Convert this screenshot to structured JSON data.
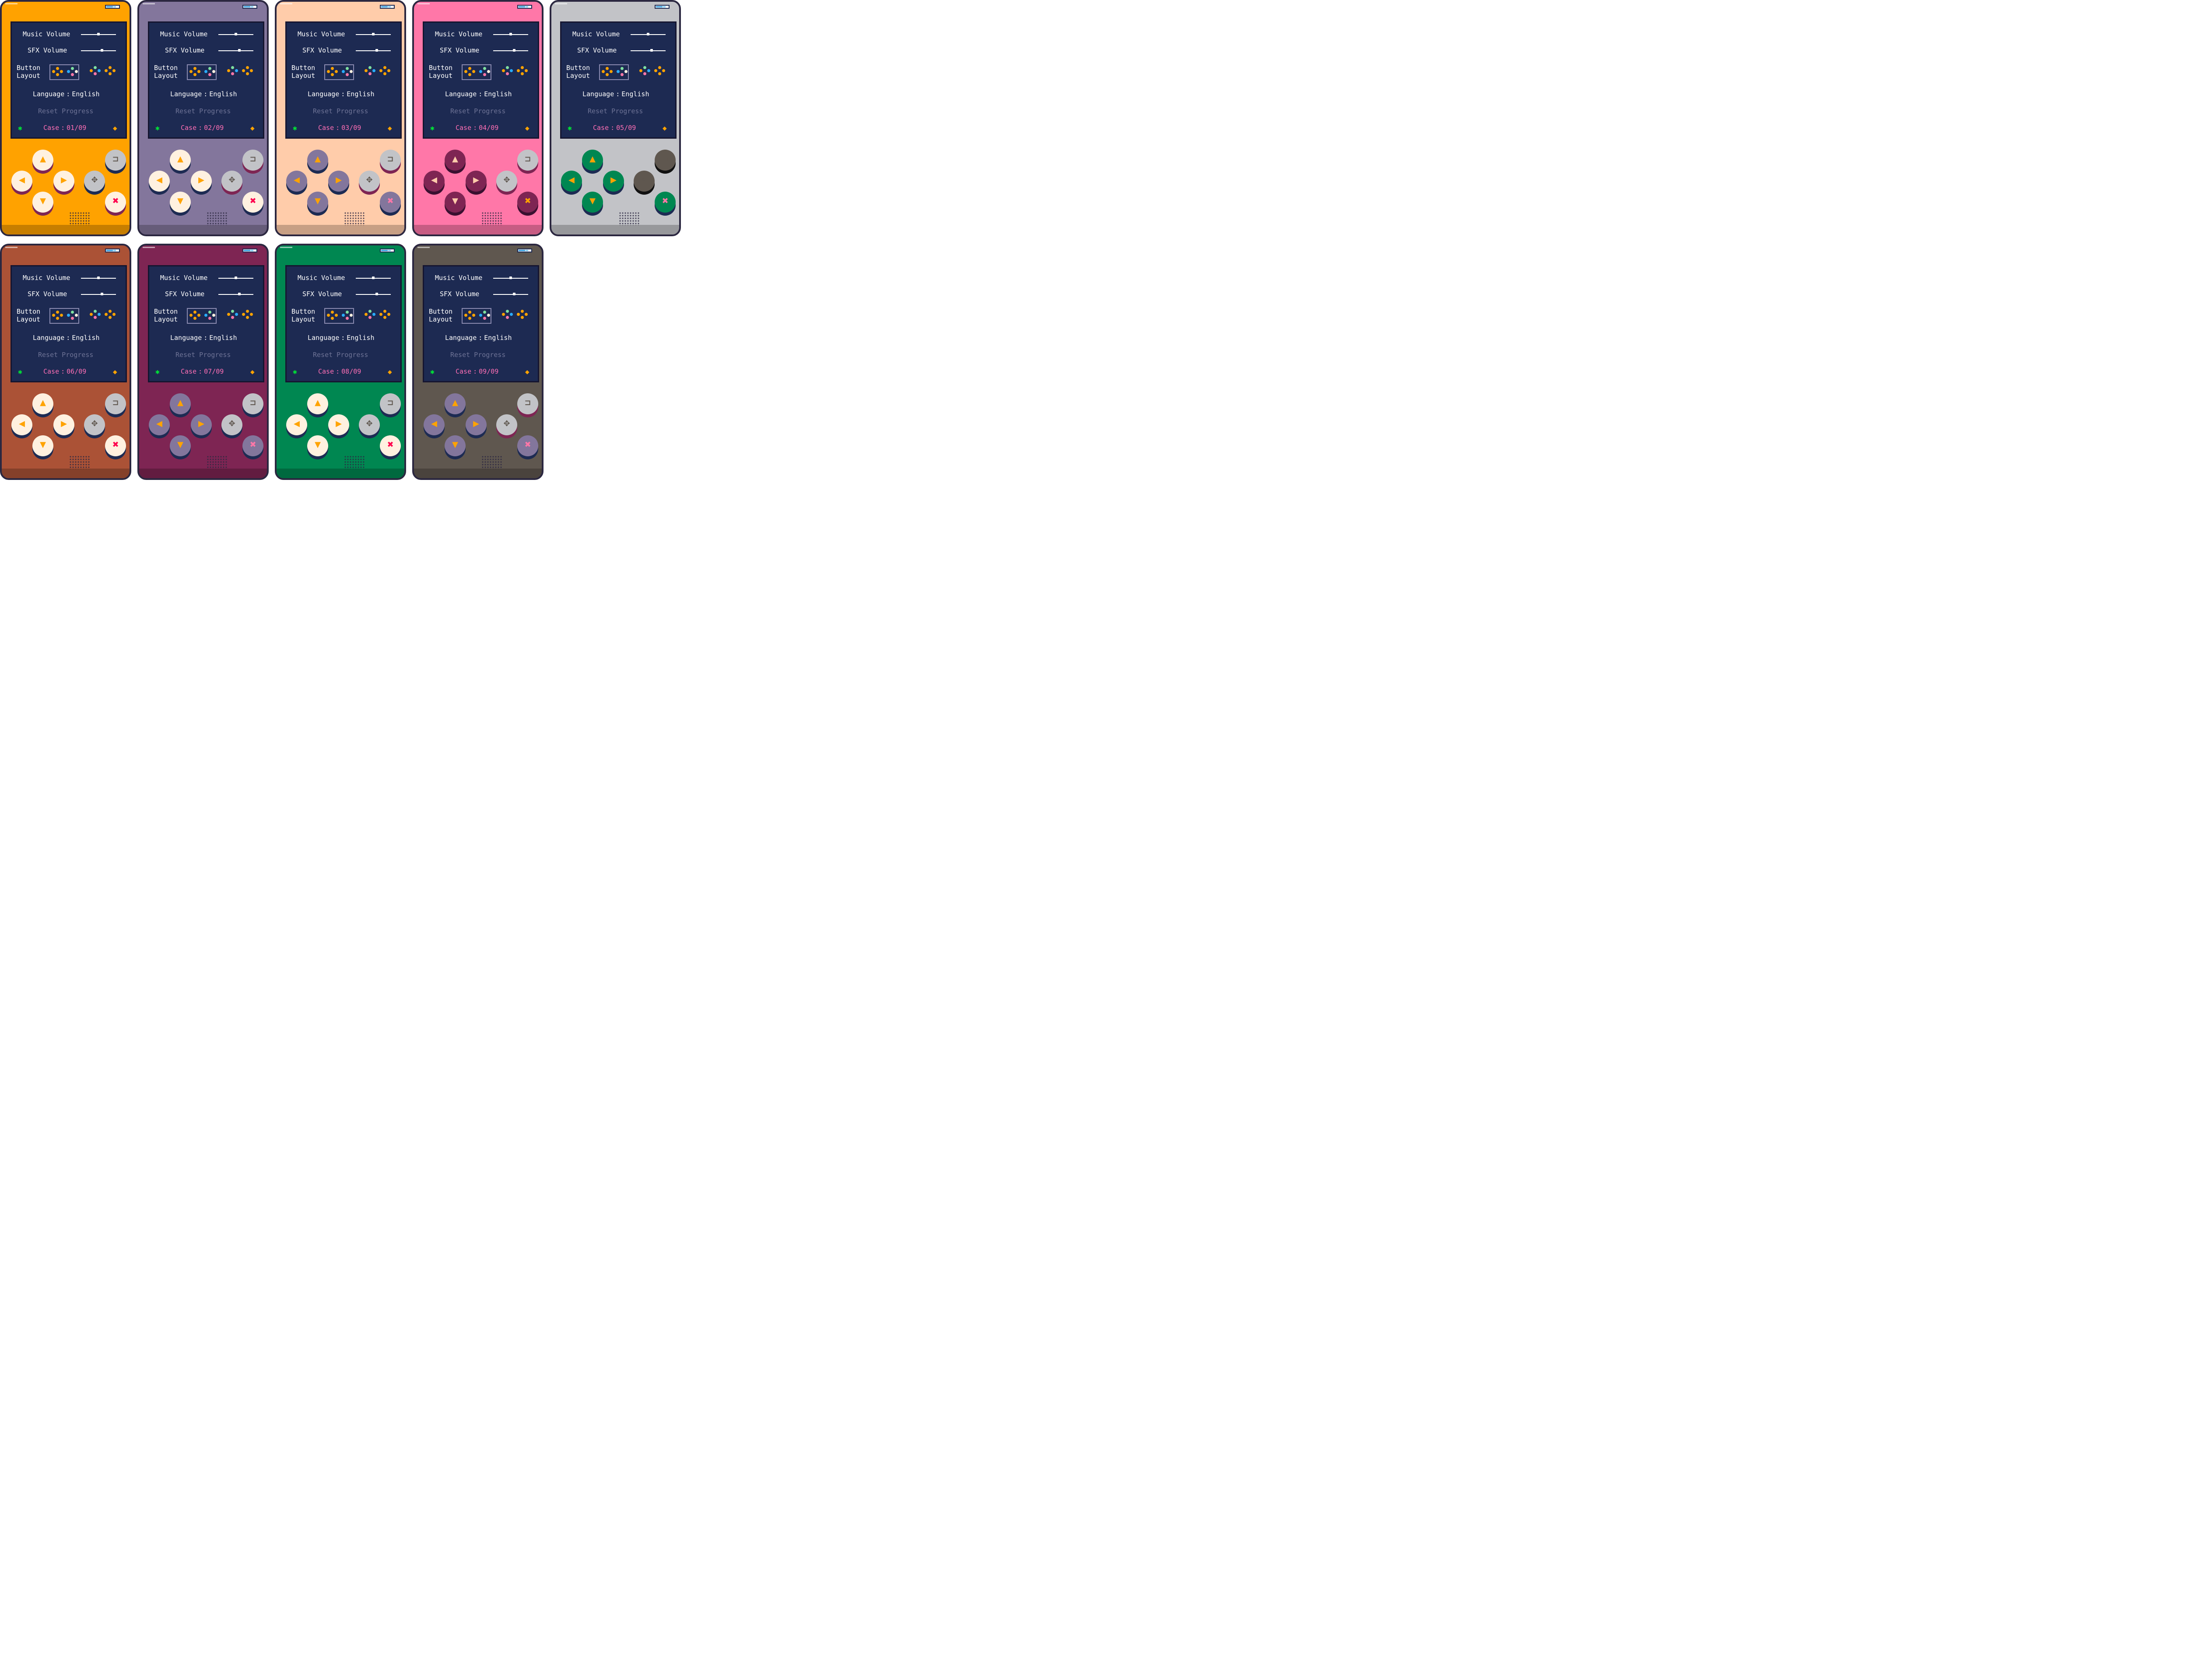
{
  "screen": {
    "music_label": "Music Volume",
    "sfx_label": "SFX Volume",
    "button_label_1": "Button",
    "button_label_2": "Layout",
    "language_label": "Language",
    "language_sep": ":",
    "language_value": "English",
    "reset_label": "Reset Progress",
    "case_label": "Case",
    "case_sep": ":"
  },
  "settings": {
    "music_volume_pct": 50,
    "sfx_volume_pct": 60
  },
  "icons": {
    "left_icon": "bug-icon",
    "right_icon": "fish-icon"
  },
  "glyphs": {
    "up": "▲",
    "left": "◀",
    "right": "▶",
    "down": "▼",
    "back": "⊐",
    "menu": "✥",
    "close": "✖"
  },
  "variants": [
    {
      "case": "01/09",
      "body": "#ffa200",
      "dpad_face": "#fff1e0",
      "dpad_side": "#7e2553",
      "cap_face": "#c2c3c7",
      "cap_side": "#1d2b53",
      "close_face": "#fff1e0",
      "close_icon": "#ff004d",
      "glyph": "#ffa300"
    },
    {
      "case": "02/09",
      "body": "#83769c",
      "dpad_face": "#fff1e0",
      "dpad_side": "#1d2b53",
      "cap_face": "#c2c3c7",
      "cap_side": "#7e2553",
      "close_face": "#fff1e0",
      "close_icon": "#ff004d",
      "glyph": "#ffa300"
    },
    {
      "case": "03/09",
      "body": "#ffccaa",
      "dpad_face": "#83769c",
      "dpad_side": "#1d2b53",
      "cap_face": "#c2c3c7",
      "cap_side": "#7e2553",
      "close_face": "#83769c",
      "close_icon": "#ff77a8",
      "glyph": "#ffa300"
    },
    {
      "case": "04/09",
      "body": "#ff77a8",
      "dpad_face": "#7e2553",
      "dpad_side": "#3a1030",
      "cap_face": "#c2c3c7",
      "cap_side": "#7e2553",
      "close_face": "#7e2553",
      "close_icon": "#ffa300",
      "glyph": "#ffccaa"
    },
    {
      "case": "05/09",
      "body": "#c2c3c7",
      "dpad_face": "#008751",
      "dpad_side": "#1d2b53",
      "cap_face": "#5f574f",
      "cap_side": "#111111",
      "close_face": "#008751",
      "close_icon": "#ff77a8",
      "glyph": "#ffa300"
    },
    {
      "case": "06/09",
      "body": "#ab5236",
      "dpad_face": "#fff1e0",
      "dpad_side": "#1d2b53",
      "cap_face": "#c2c3c7",
      "cap_side": "#1d2b53",
      "close_face": "#fff1e0",
      "close_icon": "#ff004d",
      "glyph": "#ffa300"
    },
    {
      "case": "07/09",
      "body": "#7e2553",
      "dpad_face": "#83769c",
      "dpad_side": "#1d2b53",
      "cap_face": "#c2c3c7",
      "cap_side": "#1d2b53",
      "close_face": "#83769c",
      "close_icon": "#ff77a8",
      "glyph": "#ffa300"
    },
    {
      "case": "08/09",
      "body": "#008751",
      "dpad_face": "#fff1e0",
      "dpad_side": "#1d2b53",
      "cap_face": "#c2c3c7",
      "cap_side": "#1d2b53",
      "close_face": "#fff1e0",
      "close_icon": "#ff004d",
      "glyph": "#ffa300"
    },
    {
      "case": "09/09",
      "body": "#5f574f",
      "dpad_face": "#83769c",
      "dpad_side": "#1d2b53",
      "cap_face": "#c2c3c7",
      "cap_side": "#7e2553",
      "close_face": "#83769c",
      "close_icon": "#ff77a8",
      "glyph": "#ffa300"
    }
  ]
}
